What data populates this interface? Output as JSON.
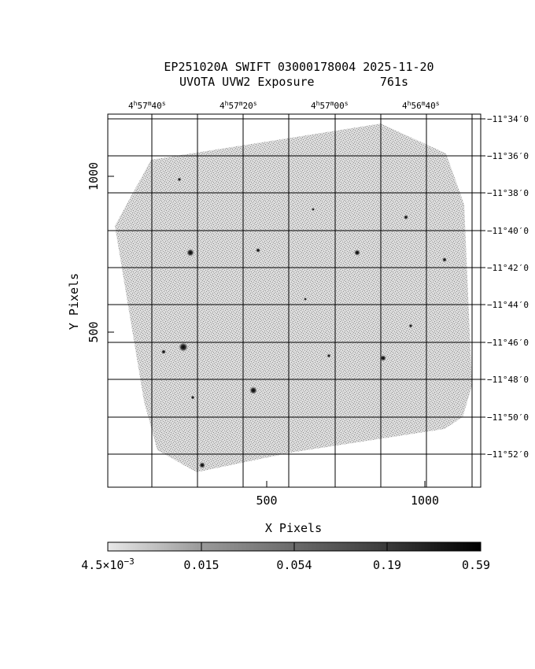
{
  "chart_data": {
    "type": "heatmap",
    "title": "EP251020A SWIFT 03000178004 2025-11-20",
    "subtitle": "UVOTA UVW2 Exposure",
    "exposure": "761s",
    "xlabel": "X Pixels",
    "ylabel": "Y Pixels",
    "xlim": [
      -510,
      1180
    ],
    "ylim": [
      -20,
      1700
    ],
    "x_ticks": [
      500,
      1000
    ],
    "y_ticks": [
      500,
      1000
    ],
    "ra_ticks": [
      {
        "h": "4",
        "m": "57",
        "s": "40"
      },
      {
        "h": "4",
        "m": "57",
        "s": "20"
      },
      {
        "h": "4",
        "m": "57",
        "s": "00"
      },
      {
        "h": "4",
        "m": "56",
        "s": "40"
      }
    ],
    "dec_ticks": [
      "−11°34′0",
      "−11°36′0",
      "−11°38′0",
      "−11°40′0",
      "−11°42′0",
      "−11°44′0",
      "−11°46′0",
      "−11°48′0",
      "−11°50′0",
      "−11°52′0"
    ],
    "colorbar_scale": "log",
    "colorbar_range": [
      0.0045,
      0.59
    ],
    "colorbar_ticks": [
      {
        "mant": "4.5×10",
        "exp": "−3"
      },
      {
        "mant": "0.015",
        "exp": ""
      },
      {
        "mant": "0.054",
        "exp": ""
      },
      {
        "mant": "0.19",
        "exp": ""
      },
      {
        "mant": "0.59",
        "exp": ""
      }
    ],
    "grid": true,
    "colors": {
      "image": "#a6a6a6",
      "grid": "#000000",
      "bright_source": "#111111"
    }
  }
}
